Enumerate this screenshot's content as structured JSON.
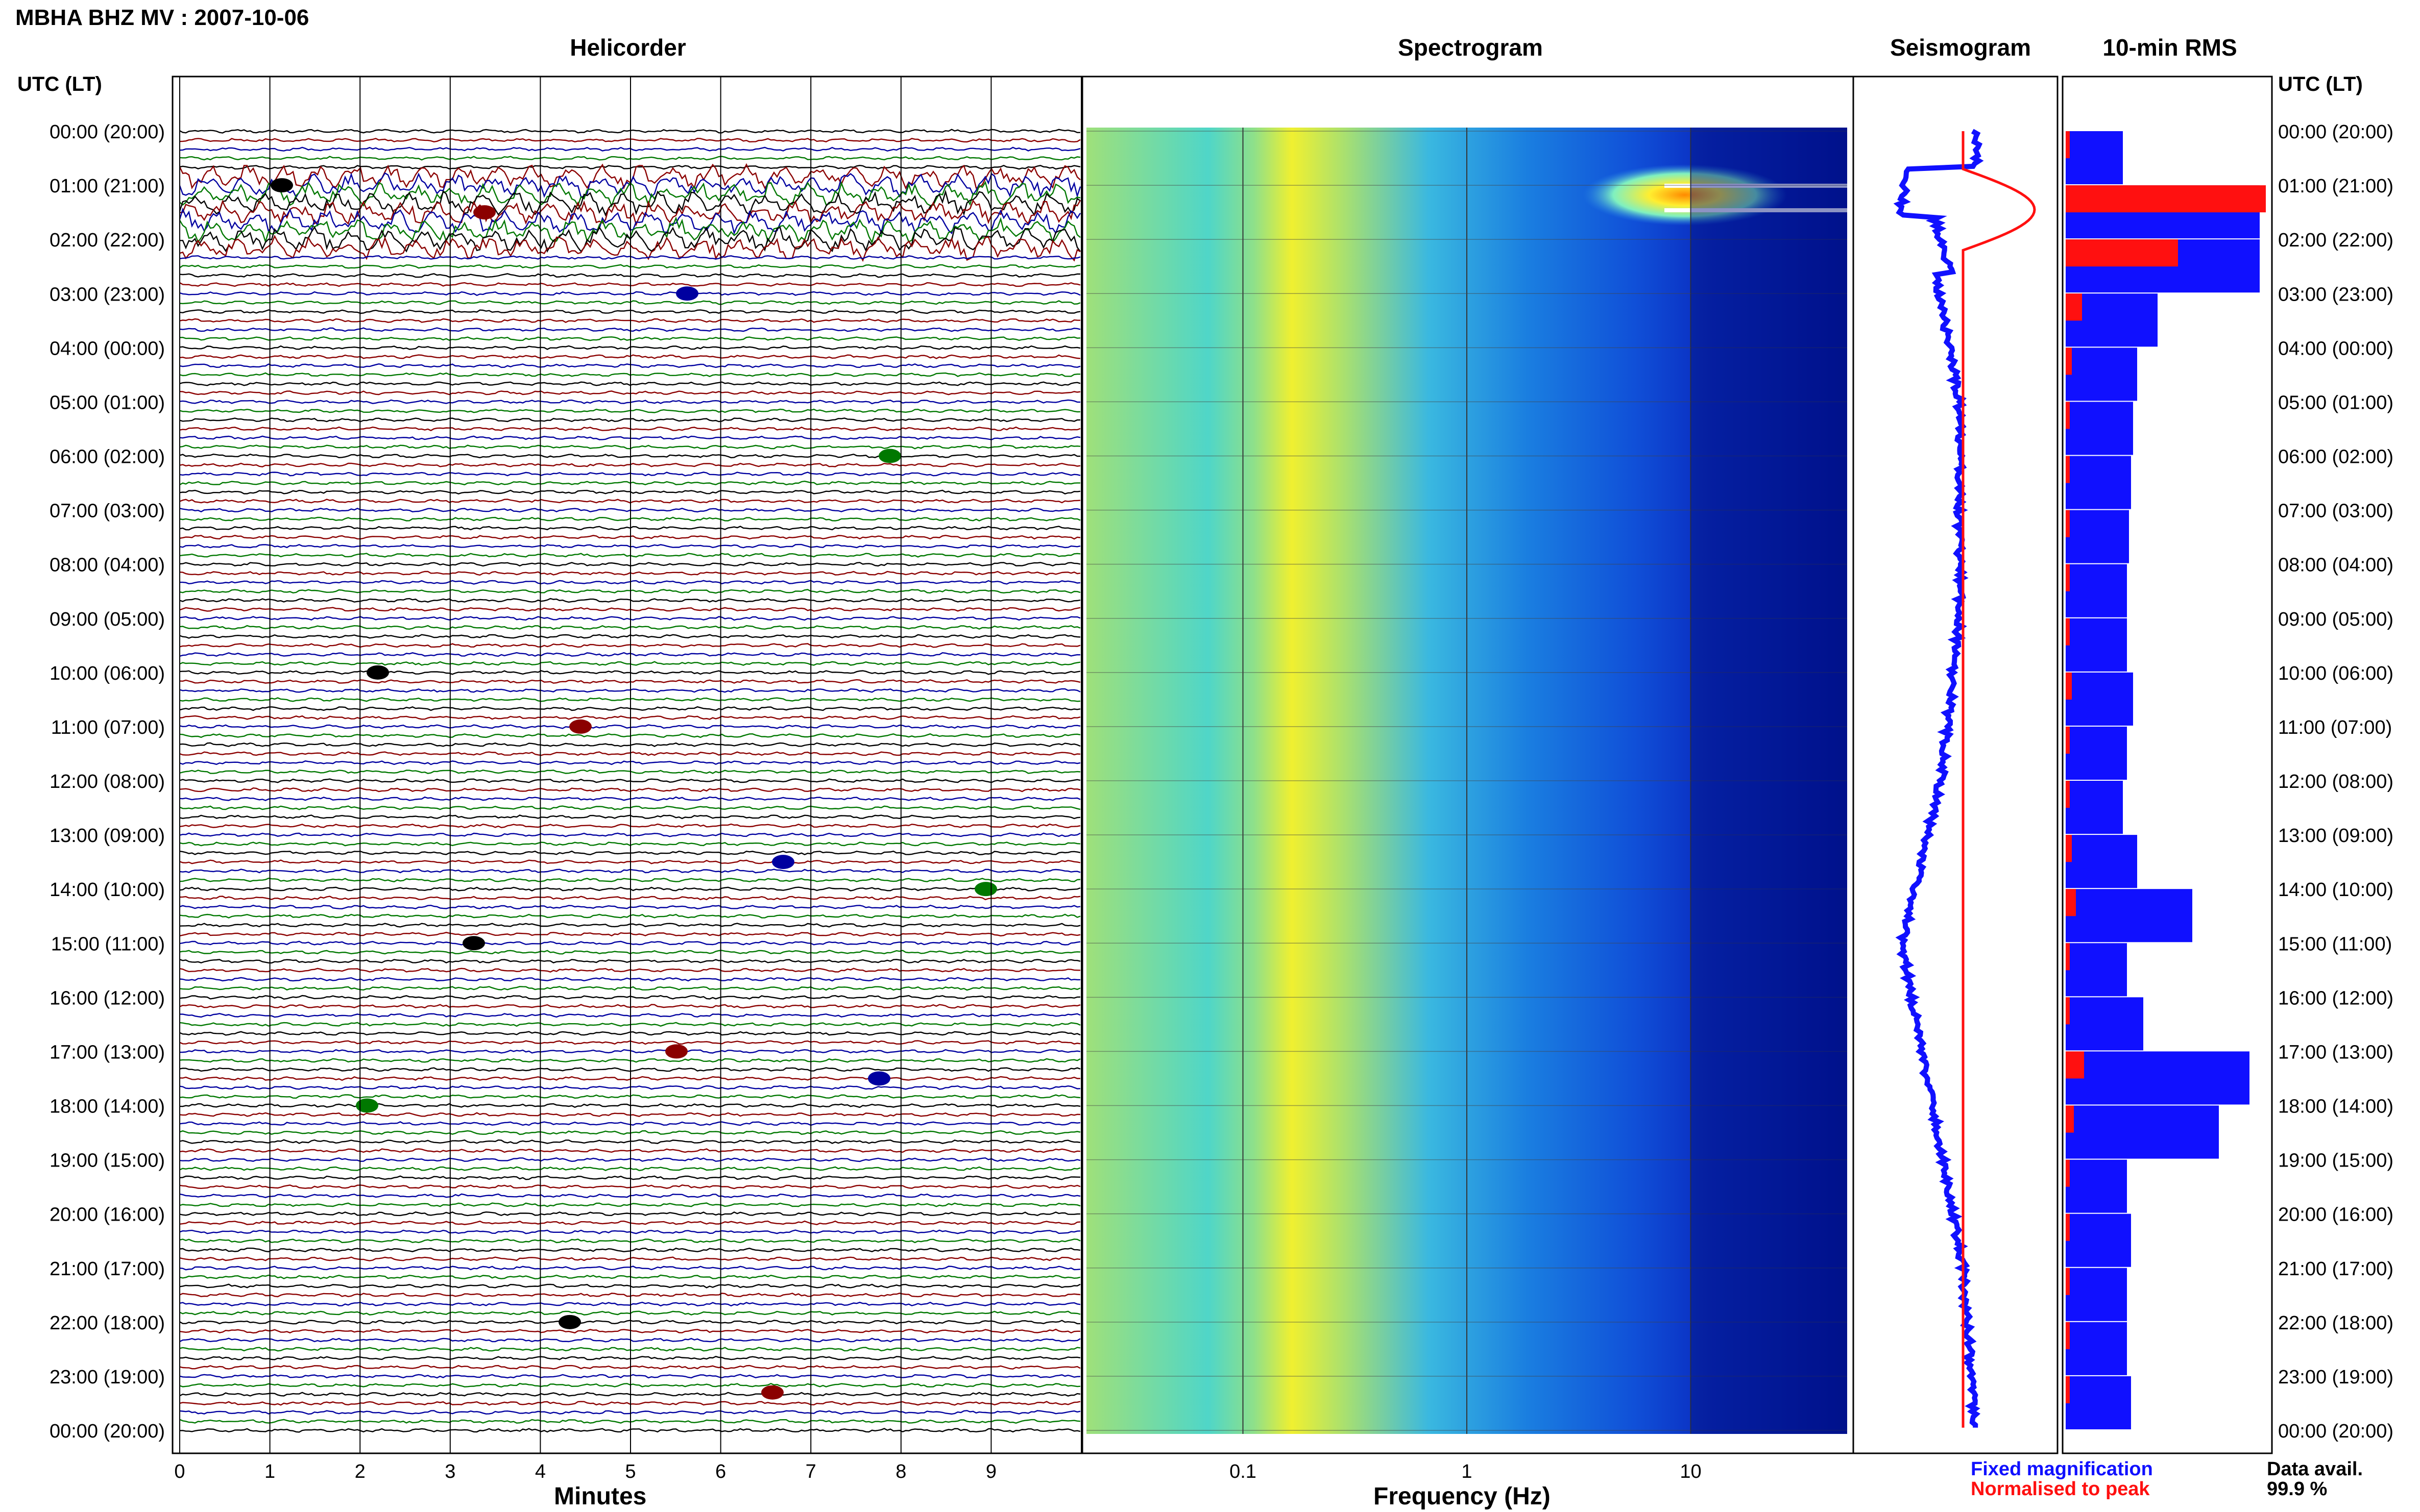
{
  "header": {
    "title": "MBHA BHZ MV : 2007-10-06"
  },
  "panels": {
    "helicorder": "Helicorder",
    "spectrogram": "Spectrogram",
    "seismogram": "Seismogram",
    "rms": "10-min RMS"
  },
  "axes": {
    "utc_header": "UTC (LT)",
    "minutes_label": "Minutes",
    "frequency_label": "Frequency (Hz)",
    "minute_ticks": [
      "0",
      "1",
      "2",
      "3",
      "4",
      "5",
      "6",
      "7",
      "8",
      "9"
    ],
    "freq_ticks": [
      "0.1",
      "1",
      "10"
    ],
    "time_labels": [
      "00:00 (20:00)",
      "01:00 (21:00)",
      "02:00 (22:00)",
      "03:00 (23:00)",
      "04:00 (00:00)",
      "05:00 (01:00)",
      "06:00 (02:00)",
      "07:00 (03:00)",
      "08:00 (04:00)",
      "09:00 (05:00)",
      "10:00 (06:00)",
      "11:00 (07:00)",
      "12:00 (08:00)",
      "13:00 (09:00)",
      "14:00 (10:00)",
      "15:00 (11:00)",
      "16:00 (12:00)",
      "17:00 (13:00)",
      "18:00 (14:00)",
      "19:00 (15:00)",
      "20:00 (16:00)",
      "21:00 (17:00)",
      "22:00 (18:00)",
      "23:00 (19:00)",
      "00:00 (20:00)"
    ]
  },
  "legend": {
    "fixed": "Fixed magnification",
    "normalised": "Normalised to peak",
    "fixed_color": "#1010ff",
    "normalised_color": "#ff1010"
  },
  "availability": {
    "label": "Data avail.",
    "value": "99.9 %"
  },
  "colors": {
    "trace_cycle": [
      "#000000",
      "#8b0000",
      "#0000a0",
      "#007800"
    ],
    "spec_low": "#00008b",
    "spec_high": "#ffff00",
    "rms_fixed": "#1010ff",
    "rms_normalised": "#ff1010"
  },
  "chart_data": {
    "type": "heatmap",
    "helicorder": {
      "rows_per_hour": 6,
      "minutes_per_row": 10,
      "event_hours": [
        1.0,
        1.5,
        3.0,
        6.0,
        10.0,
        11.0,
        13.5,
        14.0,
        15.0,
        17.0,
        17.5,
        18.0,
        22.0,
        23.3
      ]
    },
    "spectrogram": {
      "x_scale": "log",
      "xlim": [
        0.02,
        50
      ],
      "peak_band_hz": [
        0.15,
        0.3
      ]
    },
    "rms": {
      "hours": [
        0,
        1,
        2,
        3,
        4,
        5,
        6,
        7,
        8,
        9,
        10,
        11,
        12,
        13,
        14,
        15,
        16,
        17,
        18,
        19,
        20,
        21,
        22,
        23
      ],
      "fixed": [
        0.28,
        0.95,
        0.95,
        0.45,
        0.35,
        0.33,
        0.32,
        0.31,
        0.3,
        0.3,
        0.33,
        0.3,
        0.28,
        0.35,
        0.62,
        0.3,
        0.38,
        0.9,
        0.75,
        0.3,
        0.32,
        0.3,
        0.3,
        0.32
      ],
      "normalised": [
        0.02,
        0.98,
        0.55,
        0.08,
        0.03,
        0.02,
        0.02,
        0.02,
        0.02,
        0.02,
        0.03,
        0.02,
        0.02,
        0.03,
        0.05,
        0.02,
        0.02,
        0.09,
        0.04,
        0.02,
        0.02,
        0.02,
        0.02,
        0.02
      ]
    }
  }
}
